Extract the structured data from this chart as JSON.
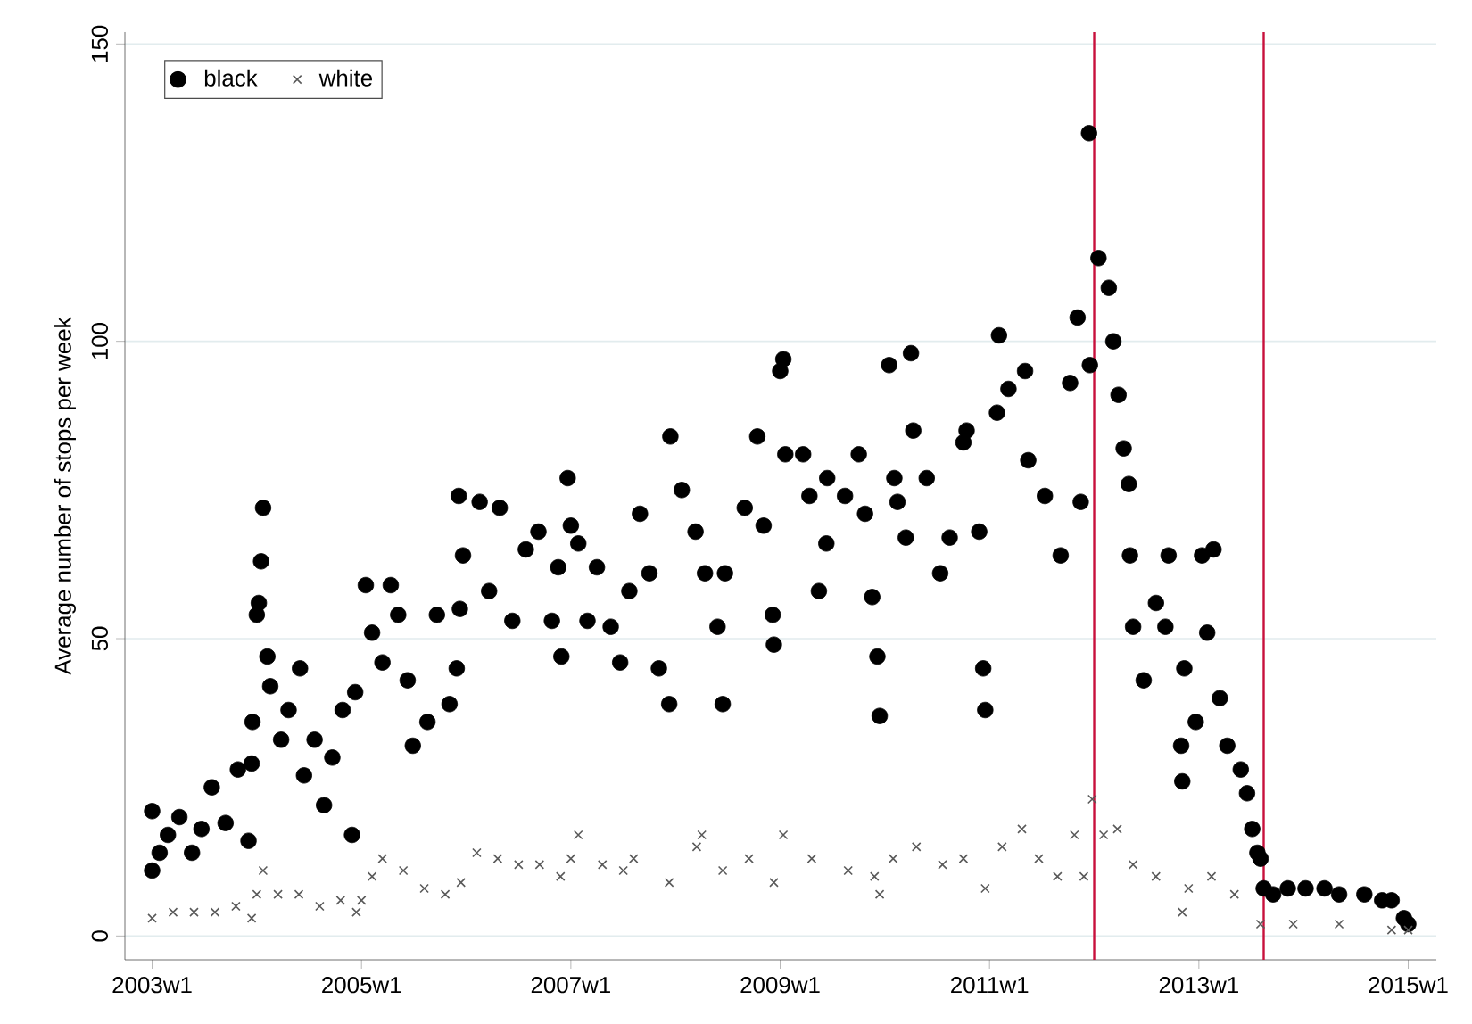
{
  "chart_data": {
    "type": "scatter",
    "ylabel": "Average number of stops per week",
    "xlim": [
      "2002-09-28",
      "2015-04-09"
    ],
    "ylim": [
      -4,
      152
    ],
    "xticks": [
      {
        "value": "2003-01-01",
        "label": "2003w1"
      },
      {
        "value": "2005-01-01",
        "label": "2005w1"
      },
      {
        "value": "2007-01-01",
        "label": "2007w1"
      },
      {
        "value": "2009-01-01",
        "label": "2009w1"
      },
      {
        "value": "2011-01-01",
        "label": "2011w1"
      },
      {
        "value": "2013-01-01",
        "label": "2013w1"
      },
      {
        "value": "2015-01-01",
        "label": "2015w1"
      }
    ],
    "yticks": [
      0,
      50,
      100,
      150
    ],
    "grid": "y",
    "legend": "top left",
    "ref_lines": [
      {
        "axis": "x",
        "value": "2012-01-01",
        "color": "#c8103c"
      },
      {
        "axis": "x",
        "value": "2013-08-15",
        "color": "#c8103c"
      }
    ],
    "series": [
      {
        "name": "black",
        "color": "#000000",
        "marker": "circle",
        "x": [
          "2003-01-01",
          "2003-01-01",
          "2003-01-27",
          "2003-02-25",
          "2003-04-06",
          "2003-05-20",
          "2003-06-22",
          "2003-07-28",
          "2003-09-14",
          "2003-10-27",
          "2003-12-03",
          "2003-12-14",
          "2003-12-17",
          "2004-01-01",
          "2004-01-08",
          "2004-01-16",
          "2004-01-23",
          "2004-02-07",
          "2004-02-17",
          "2004-03-26",
          "2004-04-21",
          "2004-05-31",
          "2004-06-14",
          "2004-07-21",
          "2004-08-23",
          "2004-09-21",
          "2004-10-27",
          "2004-11-29",
          "2004-12-10",
          "2005-01-16",
          "2005-02-07",
          "2005-03-15",
          "2005-04-13",
          "2005-05-09",
          "2005-06-11",
          "2005-06-29",
          "2005-08-19",
          "2005-09-21",
          "2005-11-04",
          "2005-11-29",
          "2005-12-06",
          "2005-12-10",
          "2005-12-21",
          "2006-02-17",
          "2006-03-22",
          "2006-04-28",
          "2006-06-11",
          "2006-07-28",
          "2006-09-10",
          "2006-10-27",
          "2006-11-18",
          "2006-11-29",
          "2006-12-21",
          "2007-01-01",
          "2007-01-27",
          "2007-02-28",
          "2007-04-02",
          "2007-05-20",
          "2007-06-22",
          "2007-07-24",
          "2007-08-30",
          "2007-10-02",
          "2007-11-04",
          "2007-12-10",
          "2007-12-14",
          "2008-01-23",
          "2008-03-11",
          "2008-04-13",
          "2008-05-27",
          "2008-06-14",
          "2008-06-22",
          "2008-08-30",
          "2008-10-13",
          "2008-11-04",
          "2008-12-06",
          "2008-12-10",
          "2009-01-01",
          "2009-01-12",
          "2009-01-19",
          "2009-03-22",
          "2009-04-13",
          "2009-05-16",
          "2009-06-11",
          "2009-06-14",
          "2009-08-15",
          "2009-10-02",
          "2009-10-24",
          "2009-11-18",
          "2009-12-06",
          "2009-12-14",
          "2010-01-16",
          "2010-02-03",
          "2010-02-14",
          "2010-03-15",
          "2010-04-02",
          "2010-04-10",
          "2010-05-27",
          "2010-07-13",
          "2010-08-15",
          "2010-10-02",
          "2010-10-13",
          "2010-11-26",
          "2010-12-10",
          "2010-12-17",
          "2011-01-27",
          "2011-02-03",
          "2011-03-08",
          "2011-05-05",
          "2011-05-16",
          "2011-07-13",
          "2011-09-06",
          "2011-10-09",
          "2011-11-04",
          "2011-11-15",
          "2011-12-14",
          "2011-12-17",
          "2012-01-16",
          "2012-02-21",
          "2012-03-08",
          "2012-03-26",
          "2012-04-13",
          "2012-05-01",
          "2012-05-05",
          "2012-05-16",
          "2012-06-22",
          "2012-08-04",
          "2012-09-06",
          "2012-09-17",
          "2012-10-31",
          "2012-11-04",
          "2012-11-11",
          "2012-12-21",
          "2013-01-12",
          "2013-01-30",
          "2013-02-21",
          "2013-03-15",
          "2013-04-10",
          "2013-05-27",
          "2013-06-18",
          "2013-07-06",
          "2013-07-24",
          "2013-08-04",
          "2013-08-15",
          "2013-09-17",
          "2013-11-07",
          "2014-01-08",
          "2014-03-15",
          "2014-05-05",
          "2014-08-01",
          "2014-10-02",
          "2014-11-04",
          "2014-12-17",
          "2015-01-01"
        ],
        "values": [
          11,
          21,
          14,
          17,
          20,
          14,
          18,
          25,
          19,
          28,
          16,
          29,
          36,
          54,
          56,
          63,
          72,
          47,
          42,
          33,
          38,
          45,
          27,
          33,
          22,
          30,
          38,
          17,
          41,
          59,
          51,
          46,
          59,
          54,
          43,
          32,
          36,
          54,
          39,
          45,
          74,
          55,
          64,
          73,
          58,
          72,
          53,
          65,
          68,
          53,
          62,
          47,
          77,
          69,
          66,
          53,
          62,
          52,
          46,
          58,
          71,
          61,
          45,
          39,
          84,
          75,
          68,
          61,
          52,
          39,
          61,
          72,
          84,
          69,
          54,
          49,
          95,
          97,
          81,
          81,
          74,
          58,
          66,
          77,
          74,
          81,
          71,
          57,
          47,
          37,
          96,
          77,
          73,
          67,
          98,
          85,
          77,
          61,
          67,
          83,
          85,
          68,
          45,
          38,
          88,
          101,
          92,
          95,
          80,
          74,
          64,
          93,
          104,
          73,
          135,
          96,
          114,
          109,
          100,
          91,
          82,
          76,
          64,
          52,
          43,
          56,
          52,
          64,
          32,
          26,
          45,
          36,
          64,
          51,
          65,
          40,
          32,
          28,
          24,
          18,
          14,
          13,
          8,
          7,
          8,
          8,
          8,
          7,
          7,
          6,
          6,
          3,
          2
        ]
      },
      {
        "name": "white",
        "color": "#5a5a5a",
        "marker": "cross",
        "x": [
          "2003-01-01",
          "2003-03-15",
          "2003-05-27",
          "2003-08-08",
          "2003-10-20",
          "2003-12-14",
          "2004-01-01",
          "2004-01-23",
          "2004-03-15",
          "2004-05-27",
          "2004-08-08",
          "2004-10-20",
          "2004-12-14",
          "2005-01-01",
          "2005-02-07",
          "2005-03-15",
          "2005-05-27",
          "2005-08-08",
          "2005-10-20",
          "2005-12-14",
          "2006-02-07",
          "2006-04-21",
          "2006-07-03",
          "2006-09-14",
          "2006-11-26",
          "2007-01-01",
          "2007-01-27",
          "2007-04-21",
          "2007-07-03",
          "2007-08-08",
          "2007-12-10",
          "2008-03-15",
          "2008-04-02",
          "2008-06-14",
          "2008-09-14",
          "2008-12-10",
          "2009-01-12",
          "2009-04-21",
          "2009-08-26",
          "2009-11-26",
          "2009-12-14",
          "2010-01-30",
          "2010-04-21",
          "2010-07-21",
          "2010-10-02",
          "2010-12-17",
          "2011-02-14",
          "2011-04-24",
          "2011-06-22",
          "2011-08-26",
          "2011-10-24",
          "2011-11-26",
          "2011-12-25",
          "2012-02-03",
          "2012-03-22",
          "2012-05-16",
          "2012-08-04",
          "2012-11-04",
          "2012-11-26",
          "2013-02-14",
          "2013-05-05",
          "2013-08-04",
          "2013-11-26",
          "2014-05-05",
          "2014-11-04",
          "2015-01-01"
        ],
        "values": [
          3,
          4,
          4,
          4,
          5,
          3,
          7,
          11,
          7,
          7,
          5,
          6,
          4,
          6,
          10,
          13,
          11,
          8,
          7,
          9,
          14,
          13,
          12,
          12,
          10,
          13,
          17,
          12,
          11,
          13,
          9,
          15,
          17,
          11,
          13,
          9,
          17,
          13,
          11,
          10,
          7,
          13,
          15,
          12,
          13,
          8,
          15,
          18,
          13,
          10,
          17,
          10,
          23,
          17,
          18,
          12,
          10,
          4,
          8,
          10,
          7,
          2,
          2,
          2,
          1,
          1
        ]
      }
    ]
  }
}
